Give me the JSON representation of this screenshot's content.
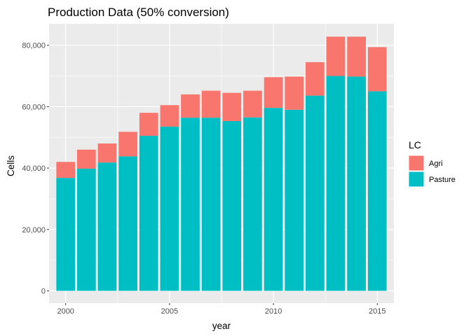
{
  "chart_data": {
    "type": "bar",
    "stacked": true,
    "title": "Production Data (50% conversion)",
    "xlabel": "year",
    "ylabel": "Cells",
    "x": [
      2000,
      2001,
      2002,
      2003,
      2004,
      2005,
      2006,
      2007,
      2008,
      2009,
      2010,
      2011,
      2012,
      2013,
      2014,
      2015
    ],
    "x_ticks": [
      2000,
      2005,
      2010,
      2015
    ],
    "y_ticks": [
      0,
      20000,
      40000,
      60000,
      80000
    ],
    "y_tick_labels": [
      "0",
      "20,000",
      "40,000",
      "60,000",
      "80,000"
    ],
    "ylim": [
      -4000,
      87000
    ],
    "xlim": [
      1999.2,
      2015.8
    ],
    "grid": true,
    "legend": {
      "title": "LC",
      "position": "right",
      "entries": [
        {
          "label": "Agri",
          "color": "#F8766D"
        },
        {
          "label": "Pasture",
          "color": "#00BFC4"
        }
      ]
    },
    "series": [
      {
        "name": "Pasture",
        "color": "#00BFC4",
        "values": [
          36800,
          39800,
          41800,
          43800,
          50500,
          53500,
          56400,
          56400,
          55300,
          56500,
          59600,
          59000,
          63600,
          70000,
          69800,
          65000
        ]
      },
      {
        "name": "Agri",
        "color": "#F8766D",
        "values": [
          5200,
          6200,
          6200,
          8000,
          7500,
          7000,
          7600,
          8800,
          9200,
          8700,
          10000,
          10800,
          10900,
          12800,
          13000,
          14400
        ]
      }
    ]
  }
}
